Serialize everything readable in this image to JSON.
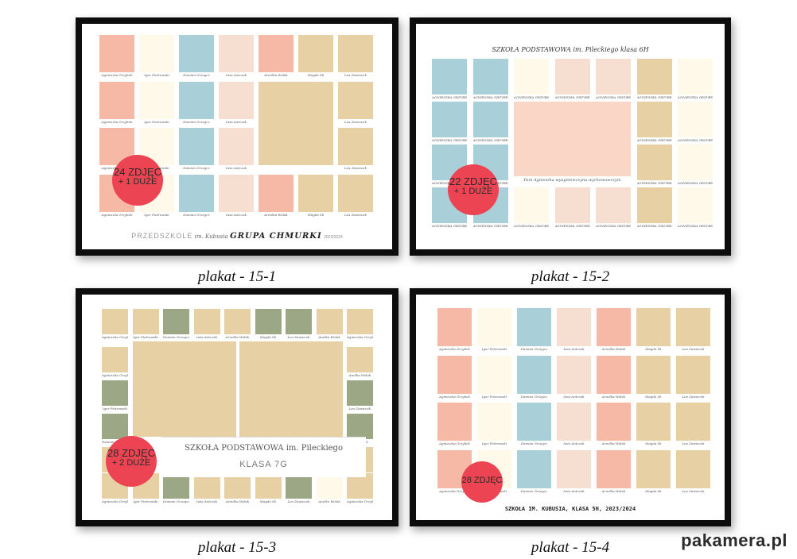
{
  "colors": {
    "pink": "#f6b9a5",
    "cream": "#fef9e9",
    "blue": "#a9cfd8",
    "peach": "#f6dfd0",
    "tan": "#e7d1a4",
    "sage": "#9ca785",
    "peachbig": "#f9d6c6",
    "badge": "#ec4453",
    "frame": "#0d0d0d"
  },
  "posters": [
    {
      "id": "15-1",
      "caption": "plakat - 15-1",
      "badge_line1": "24 ZDJĘC",
      "badge_line2": "+ 1 DUŻE",
      "title_plain": "PRZEDSZKOLE",
      "title_script": "im. Kubusia",
      "title_bold": "GRUPA CHMURKI",
      "title_year": "2023/2024",
      "names": [
        "Agnieszka Grzybek",
        "Igor Piotrowski",
        "Damian Grzegcz",
        "Iwia Antczak",
        "Arnolka Wolak",
        "Magda Sk",
        "Lea Zawiecek"
      ]
    },
    {
      "id": "15-2",
      "caption": "plakat - 15-2",
      "badge_line1": "22 ZDJĘC",
      "badge_line2": "+ 1 DUŻE",
      "title": "SZKOŁA PODSTAWOWA im. Pileckiego klasa 6H",
      "big_label": "Pani Agnieszka wyagniewczyna wychowawczyni",
      "name": "AGNIESZKA GRZYBEK"
    },
    {
      "id": "15-3",
      "caption": "plakat - 15-3",
      "badge_line1": "28 ZDJĘC",
      "badge_line2": "+ 2 DUŻE",
      "title": "SZKOŁA PODSTAWOWA im. Pileckiego",
      "subtitle": "KLASA 7G",
      "names": [
        "Agnieszka Grzybek",
        "Igor Piotrowski",
        "Damian Grzegcz",
        "Iwia Antczak",
        "Arnolka Wolak",
        "Magda Sk",
        "Lea Zawiecek",
        "Anelka Wolak"
      ]
    },
    {
      "id": "15-4",
      "caption": "plakat - 15-4",
      "badge_line1": "28 ZDJĘC",
      "title": "SZKOŁA IM. KUBUSIA, KLASA 5H, 2023/2024",
      "names": [
        "Agnieszka Grzybek",
        "Igor Piotrowski",
        "Damian Grzegcz",
        "Iwia Antczak",
        "Arnolka Wolak",
        "Magda Sk",
        "Lea Zawiecek"
      ]
    }
  ],
  "logo": "pakamera.pl"
}
